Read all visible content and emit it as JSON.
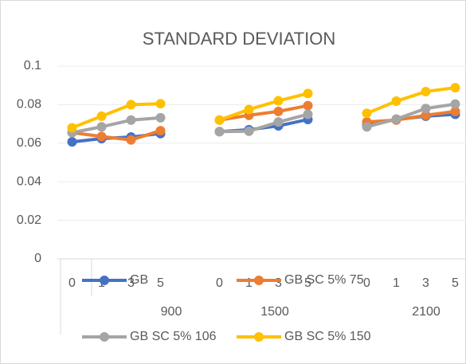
{
  "chart_data": {
    "type": "line",
    "title": "STANDARD DEVIATION",
    "categories": [
      "0",
      "1",
      "3",
      "5",
      null,
      "0",
      "1",
      "3",
      "5",
      null,
      "0",
      "1",
      "3",
      "5"
    ],
    "group_labels": [
      "900",
      "1500",
      "2100"
    ],
    "series": [
      {
        "name": "GB",
        "color": "#4472c4",
        "values": [
          0.0607,
          0.0624,
          0.0632,
          0.065,
          null,
          0.066,
          0.067,
          0.069,
          0.0723,
          null,
          0.0694,
          0.0723,
          0.074,
          0.075
        ]
      },
      {
        "name": "GB SC 5% 75",
        "color": "#ed7d31",
        "values": [
          0.0655,
          0.0635,
          0.0617,
          0.0665,
          null,
          0.072,
          0.0745,
          0.0765,
          0.0795,
          null,
          0.071,
          0.072,
          0.0745,
          0.0765
        ]
      },
      {
        "name": "GB SC 5% 106",
        "color": "#a5a5a5",
        "values": [
          0.0655,
          0.0685,
          0.072,
          0.0732,
          null,
          0.066,
          0.0662,
          0.071,
          0.075,
          null,
          0.0685,
          0.0725,
          0.078,
          0.0803
        ]
      },
      {
        "name": "GB SC 5% 150",
        "color": "#ffc000",
        "values": [
          0.068,
          0.074,
          0.08,
          0.0805,
          null,
          0.072,
          0.0775,
          0.082,
          0.0858,
          null,
          0.0755,
          0.0818,
          0.0868,
          0.0888
        ]
      }
    ],
    "ylim": [
      0,
      0.1
    ],
    "yticks": [
      0,
      0.02,
      0.04,
      0.06,
      0.08,
      0.1
    ],
    "grid": true
  }
}
